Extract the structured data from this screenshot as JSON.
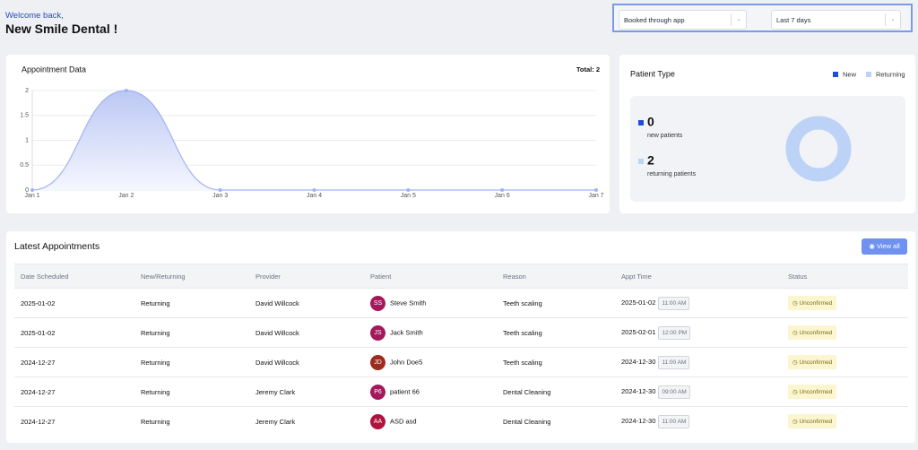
{
  "header": {
    "welcome": "Welcome back,",
    "clinic": "New Smile Dental !"
  },
  "filters": {
    "source": "Booked through app",
    "range": "Last 7 days"
  },
  "chart_data": [
    {
      "type": "line",
      "title": "Appointment Data",
      "total": "Total: 2",
      "categories": [
        "Jan 1",
        "Jan 2",
        "Jan 3",
        "Jan 4",
        "Jan 5",
        "Jan 6",
        "Jan 7"
      ],
      "values": [
        0,
        2,
        0,
        0,
        0,
        0,
        0
      ],
      "color": "#9fb3f5",
      "ylim": [
        0,
        2
      ],
      "yticks": [
        0,
        0.5,
        1,
        1.5,
        2
      ],
      "grid": true
    },
    {
      "type": "pie",
      "title": "Patient Type",
      "categories": [
        "New",
        "Returning"
      ],
      "values": [
        0,
        2
      ],
      "colors": [
        "#1d4ed8",
        "#bcd3f7"
      ],
      "descriptions": [
        "new patients",
        "returning patients"
      ]
    }
  ],
  "appointments": {
    "title": "Latest Appointments",
    "view_all": "View all",
    "columns": [
      "Date Scheduled",
      "New/Returning",
      "Provider",
      "Patient",
      "Reason",
      "Appt Time",
      "Status"
    ],
    "rows": [
      {
        "date": "2025-01-02",
        "type": "Returning",
        "provider": "David Willcock",
        "initials": "SS",
        "patient": "Steve Smith",
        "reason": "Teeth scaling",
        "appt_date": "2025-01-02",
        "appt_time": "11:00 AM",
        "status": "Unconfirmed"
      },
      {
        "date": "2025-01-02",
        "type": "Returning",
        "provider": "David Willcock",
        "initials": "JS",
        "patient": "Jack Smith",
        "reason": "Teeth scaling",
        "appt_date": "2025-02-01",
        "appt_time": "12:00 PM",
        "status": "Unconfirmed"
      },
      {
        "date": "2024-12-27",
        "type": "Returning",
        "provider": "David Willcock",
        "initials": "JD",
        "patient": "John Doe5",
        "reason": "Teeth scaling",
        "appt_date": "2024-12-30",
        "appt_time": "11:00 AM",
        "status": "Unconfirmed"
      },
      {
        "date": "2024-12-27",
        "type": "Returning",
        "provider": "Jeremy Clark",
        "initials": "P6",
        "patient": "patient 66",
        "reason": "Dental Cleaning",
        "appt_date": "2024-12-30",
        "appt_time": "09:00 AM",
        "status": "Unconfirmed"
      },
      {
        "date": "2024-12-27",
        "type": "Returning",
        "provider": "Jeremy Clark",
        "initials": "AA",
        "patient": "ASD asd",
        "reason": "Dental Cleaning",
        "appt_date": "2024-12-30",
        "appt_time": "11:00 AM",
        "status": "Unconfirmed"
      }
    ]
  }
}
